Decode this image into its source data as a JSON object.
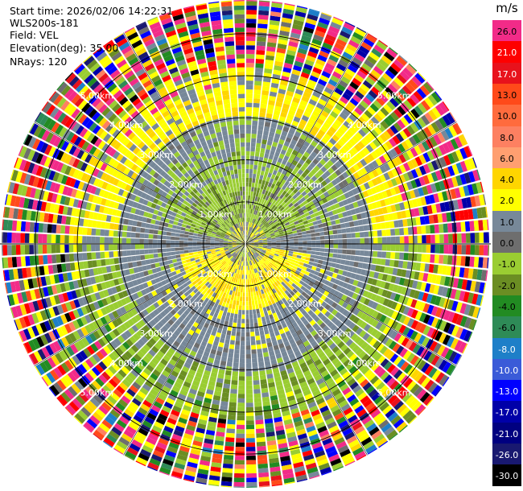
{
  "header": {
    "start_time": "Start time: 2026/02/06 14:22:31",
    "instrument": "WLS200s-181",
    "field": "Field: VEL",
    "elevation": "Elevation(deg): 35.00",
    "nrays": "NRays: 120"
  },
  "colorbar": {
    "unit": "m/s",
    "entries": [
      {
        "label": "26.0",
        "color": "#f22b88"
      },
      {
        "label": "21.0",
        "color": "#fe0000"
      },
      {
        "label": "17.0",
        "color": "#e8121c"
      },
      {
        "label": "13.0",
        "color": "#ff4a1a"
      },
      {
        "label": "10.0",
        "color": "#ff6b3d"
      },
      {
        "label": "8.0",
        "color": "#fd8061"
      },
      {
        "label": "6.0",
        "color": "#ff9f70"
      },
      {
        "label": "4.0",
        "color": "#ffd500"
      },
      {
        "label": "2.0",
        "color": "#ffff00"
      },
      {
        "label": "1.0",
        "color": "#778899"
      },
      {
        "label": "0.0",
        "color": "#6e6e6e"
      },
      {
        "label": "-1.0",
        "color": "#9acd32"
      },
      {
        "label": "-2.0",
        "color": "#6b8e23"
      },
      {
        "label": "-4.0",
        "color": "#228b22"
      },
      {
        "label": "-6.0",
        "color": "#2e8b57"
      },
      {
        "label": "-8.0",
        "color": "#1e7fc8"
      },
      {
        "label": "-10.0",
        "color": "#3a5bd8"
      },
      {
        "label": "-13.0",
        "color": "#0000ff"
      },
      {
        "label": "-17.0",
        "color": "#0000a8"
      },
      {
        "label": "-21.0",
        "color": "#000080"
      },
      {
        "label": "-26.0",
        "color": "#191970"
      },
      {
        "label": "-30.0",
        "color": "#000000"
      }
    ]
  },
  "chart_data": {
    "type": "ppi",
    "field": "VEL",
    "unit": "m/s",
    "nrays": 120,
    "range_rings_km": [
      1,
      2,
      3,
      4,
      5
    ],
    "range_labels": [
      "1.00km",
      "2.00km",
      "3.00km",
      "4.00km",
      "5.00km"
    ],
    "max_range_km": 5.8,
    "color_levels": [
      26.0,
      21.0,
      17.0,
      13.0,
      10.0,
      8.0,
      6.0,
      4.0,
      2.0,
      1.0,
      0.0,
      -1.0,
      -2.0,
      -4.0,
      -6.0,
      -8.0,
      -10.0,
      -13.0,
      -17.0,
      -21.0,
      -26.0,
      -30.0
    ],
    "colorbar_range": [
      -30.0,
      26.0
    ],
    "pattern": {
      "inner_core_km": [
        0,
        0.55
      ],
      "north_lobe": "negative (-1 to -2 m/s) out to ~2.4 km, surrounded by ~0 m/s",
      "south_lobe": "positive (+2 to +4 m/s) out to ~1.5 km, surrounded by ~0 m/s",
      "north_ring": "+2 to +4 m/s band at ~3.3 km (north side)",
      "south_ring": "-1 to -2 m/s band at ~3.3 km (south side)",
      "outer_noise_km": [
        4.0,
        5.8
      ]
    }
  }
}
